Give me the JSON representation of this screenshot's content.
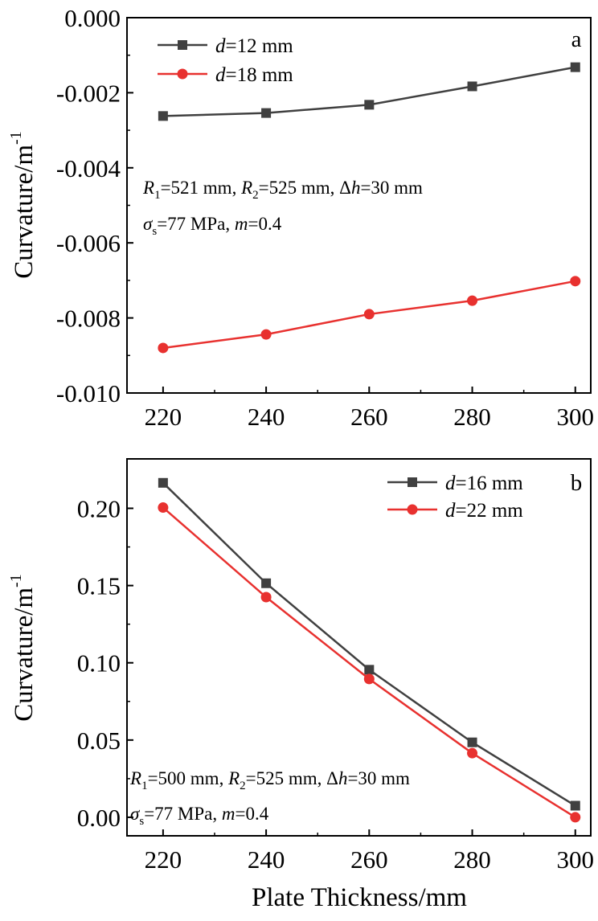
{
  "xlabel": "Plate Thickness/mm",
  "chart_data": [
    {
      "type": "line",
      "panel_label": "a",
      "ylabel": "Curvature/m",
      "ylabel_sup": "-1",
      "x": [
        220,
        240,
        260,
        280,
        300
      ],
      "xticks": [
        "220",
        "240",
        "260",
        "280",
        "300"
      ],
      "xlim": [
        213,
        303
      ],
      "ylim": [
        -0.01,
        0.0
      ],
      "yticks": [
        "0.000",
        "-0.002",
        "-0.004",
        "-0.006",
        "-0.008",
        "-0.010"
      ],
      "ytick_values": [
        0.0,
        -0.002,
        -0.004,
        -0.006,
        -0.008,
        -0.01
      ],
      "legend_position": "top-left",
      "series": [
        {
          "name": "=12 mm",
          "name_prefix": "d",
          "marker": "square",
          "color": "#404040",
          "values": [
            -0.00262,
            -0.00254,
            -0.00232,
            -0.00183,
            -0.00132
          ]
        },
        {
          "name": "=18 mm",
          "name_prefix": "d",
          "marker": "circle",
          "color": "#e8312f",
          "values": [
            -0.0088,
            -0.00844,
            -0.0079,
            -0.00754,
            -0.00702
          ]
        }
      ],
      "annotations": {
        "line1": [
          {
            "t": "R",
            "s": "i"
          },
          {
            "t": "1",
            "s": "sub"
          },
          {
            "t": "=521 mm, "
          },
          {
            "t": "R",
            "s": "i"
          },
          {
            "t": "2",
            "s": "sub"
          },
          {
            "t": "=525 mm, Δ"
          },
          {
            "t": "h",
            "s": "i"
          },
          {
            "t": "=30 mm"
          }
        ],
        "line2": [
          {
            "t": "σ",
            "s": "i"
          },
          {
            "t": "s",
            "s": "sub"
          },
          {
            "t": "=77 MPa, "
          },
          {
            "t": "m",
            "s": "i"
          },
          {
            "t": "=0.4"
          }
        ]
      }
    },
    {
      "type": "line",
      "panel_label": "b",
      "ylabel": "Curvature/m",
      "ylabel_sup": "-1",
      "x": [
        220,
        240,
        260,
        280,
        300
      ],
      "xticks": [
        "220",
        "240",
        "260",
        "280",
        "300"
      ],
      "xlim": [
        213,
        303
      ],
      "ylim": [
        -0.012,
        0.232
      ],
      "yticks": [
        "0.20",
        "0.15",
        "0.10",
        "0.05",
        "0.00"
      ],
      "ytick_values": [
        0.2,
        0.15,
        0.1,
        0.05,
        0.0
      ],
      "legend_position": "top-right",
      "series": [
        {
          "name": "=16 mm",
          "name_prefix": "d",
          "marker": "square",
          "color": "#404040",
          "values": [
            0.2165,
            0.1515,
            0.0955,
            0.0485,
            0.0075
          ]
        },
        {
          "name": "=22 mm",
          "name_prefix": "d",
          "marker": "circle",
          "color": "#e8312f",
          "values": [
            0.2005,
            0.1425,
            0.0895,
            0.0415,
            0.0
          ]
        }
      ],
      "annotations": {
        "line1": [
          {
            "t": "R",
            "s": "i"
          },
          {
            "t": "1",
            "s": "sub"
          },
          {
            "t": "=500 mm, "
          },
          {
            "t": "R",
            "s": "i"
          },
          {
            "t": "2",
            "s": "sub"
          },
          {
            "t": "=525 mm, Δ"
          },
          {
            "t": "h",
            "s": "i"
          },
          {
            "t": "=30 mm"
          }
        ],
        "line2": [
          {
            "t": "σ",
            "s": "i"
          },
          {
            "t": "s",
            "s": "sub"
          },
          {
            "t": "=77 MPa, "
          },
          {
            "t": "m",
            "s": "i"
          },
          {
            "t": "=0.4"
          }
        ]
      }
    }
  ]
}
